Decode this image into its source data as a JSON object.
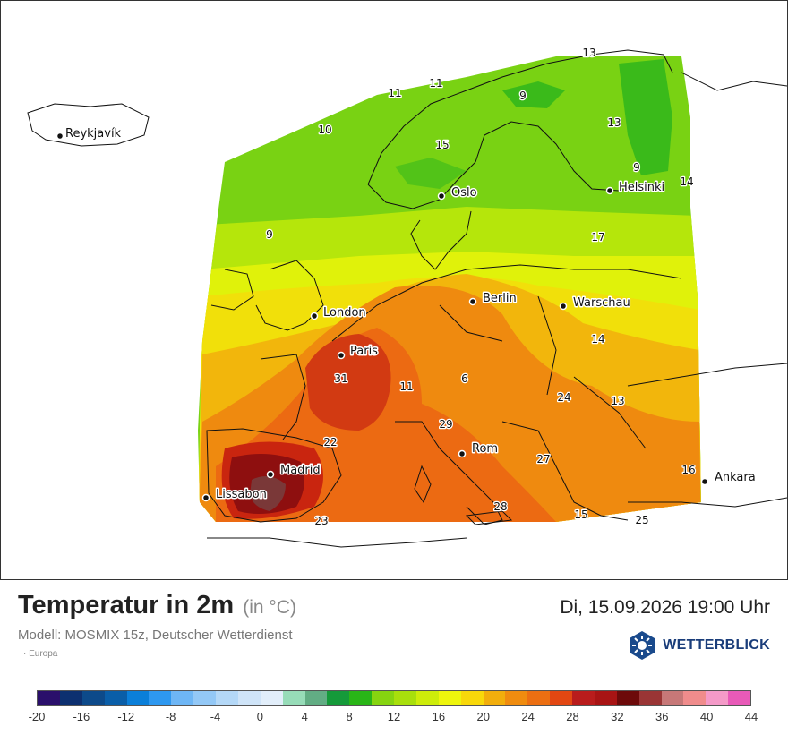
{
  "title": "Temperatur in 2m",
  "unit": "(in °C)",
  "datetime": "Di, 15.09.2026 19:00 Uhr",
  "model": "Modell: MOSMIX 15z, Deutscher Wetterdienst",
  "region": "· Europa",
  "brand": "WETTERBLICK",
  "cities": [
    {
      "name": "Reykjavík"
    },
    {
      "name": "Oslo"
    },
    {
      "name": "Helsinki"
    },
    {
      "name": "London"
    },
    {
      "name": "Berlin"
    },
    {
      "name": "Warschau"
    },
    {
      "name": "Paris"
    },
    {
      "name": "Madrid"
    },
    {
      "name": "Lissabon"
    },
    {
      "name": "Rom"
    },
    {
      "name": "Ankara"
    }
  ],
  "temperature_labels": [
    "13",
    "11",
    "11",
    "9",
    "10",
    "13",
    "15",
    "9",
    "14",
    "9",
    "17",
    "14",
    "31",
    "11",
    "6",
    "24",
    "13",
    "29",
    "22",
    "27",
    "16",
    "28",
    "15",
    "23",
    "25"
  ],
  "colorbar": {
    "colors": [
      "#2a0f6b",
      "#0d3070",
      "#0d4a8a",
      "#0a5ea8",
      "#0b7fd9",
      "#2e98f0",
      "#6eb6f5",
      "#93c8f6",
      "#b4d8f7",
      "#cfe4f8",
      "#e2eefa",
      "#97dcb8",
      "#62ad84",
      "#159a3a",
      "#29b517",
      "#86d410",
      "#a8df0c",
      "#cdec0a",
      "#eef50c",
      "#f8d80a",
      "#f2ae0c",
      "#f08c0f",
      "#ec6f12",
      "#e24712",
      "#b91c1c",
      "#a81414",
      "#6d0a0a",
      "#9a3535",
      "#c77878",
      "#f08c8c",
      "#f49ac8",
      "#e85ab8"
    ],
    "ticks": [
      "-20",
      "-16",
      "-12",
      "-8",
      "-4",
      "0",
      "4",
      "8",
      "12",
      "16",
      "20",
      "24",
      "28",
      "32",
      "36",
      "40",
      "44"
    ]
  }
}
